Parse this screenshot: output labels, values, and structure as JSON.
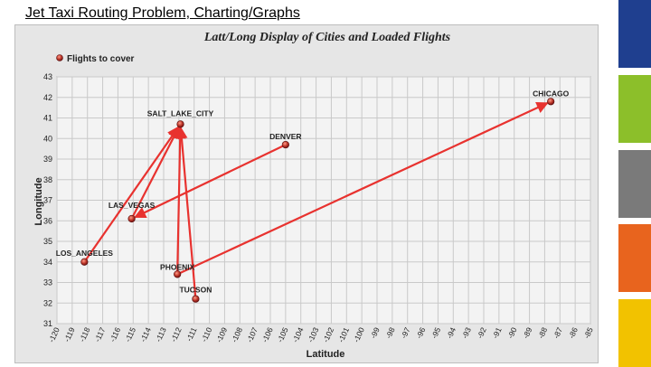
{
  "slide": {
    "title": "Jet Taxi Routing Problem,  Charting/Graphs"
  },
  "colors": {
    "bar_blue": "#1f3f8f",
    "bar_green": "#8cbf2a",
    "bar_gray": "#7a7a7a",
    "bar_orange": "#e8641e",
    "bar_yellow": "#f2c200",
    "route": "#e8322f",
    "point": "#9e1f1f"
  },
  "chart_data": {
    "type": "scatter",
    "title": "Latt/Long Display of Cities and Loaded Flights",
    "xlabel": "Latitude",
    "ylabel": "Longitude",
    "xlim": [
      -120,
      -85
    ],
    "ylim": [
      31,
      43
    ],
    "x_ticks": [
      "-120",
      "-119",
      "-118",
      "-117",
      "-116",
      "-115",
      "-114",
      "-113",
      "-112",
      "-111",
      "-110",
      "-109",
      "-108",
      "-107",
      "-106",
      "-105",
      "-104",
      "-103",
      "-102",
      "-101",
      "-100",
      "-99",
      "-98",
      "-97",
      "-96",
      "-95",
      "-94",
      "-93",
      "-92",
      "-91",
      "-90",
      "-89",
      "-88",
      "-87",
      "-86",
      "-85"
    ],
    "y_ticks": [
      "31",
      "32",
      "33",
      "34",
      "35",
      "36",
      "37",
      "38",
      "39",
      "40",
      "41",
      "42",
      "43"
    ],
    "grid": true,
    "legend": {
      "position": "top-left",
      "label": "Flights to cover"
    },
    "cities": [
      {
        "name": "SALT_LAKE_CITY",
        "x": -111.9,
        "y": 40.7
      },
      {
        "name": "DENVER",
        "x": -105.0,
        "y": 39.7
      },
      {
        "name": "CHICAGO",
        "x": -87.6,
        "y": 41.8
      },
      {
        "name": "LAS_VEGAS",
        "x": -115.1,
        "y": 36.1
      },
      {
        "name": "LOS_ANGELES",
        "x": -118.2,
        "y": 34.0
      },
      {
        "name": "PHOENIX",
        "x": -112.1,
        "y": 33.4
      },
      {
        "name": "TUCSON",
        "x": -110.9,
        "y": 32.2
      }
    ],
    "flights": [
      {
        "from": "LOS_ANGELES",
        "to": "SALT_LAKE_CITY"
      },
      {
        "from": "LAS_VEGAS",
        "to": "SALT_LAKE_CITY"
      },
      {
        "from": "DENVER",
        "to": "LAS_VEGAS"
      },
      {
        "from": "PHOENIX",
        "to": "SALT_LAKE_CITY"
      },
      {
        "from": "TUCSON",
        "to": "SALT_LAKE_CITY"
      },
      {
        "from": "PHOENIX",
        "to": "CHICAGO"
      }
    ]
  }
}
